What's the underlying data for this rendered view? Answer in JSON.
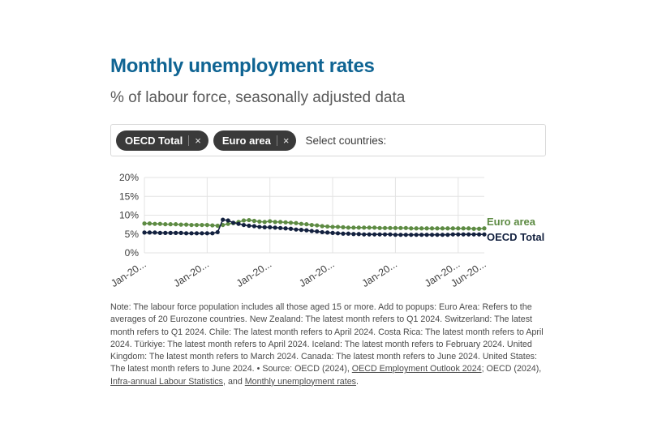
{
  "header": {
    "title": "Monthly unemployment rates",
    "subtitle": "% of labour force, seasonally adjusted data"
  },
  "filters": {
    "prompt": "Select countries:",
    "remove_icon": "×",
    "chips": [
      {
        "label": "OECD Total"
      },
      {
        "label": "Euro area"
      }
    ]
  },
  "chart_data": {
    "type": "line",
    "title": "Monthly unemployment rates",
    "xlabel": "",
    "ylabel": "% of labour force",
    "ylim": [
      0,
      20
    ],
    "ytick_values": [
      0,
      5,
      10,
      15,
      20
    ],
    "ytick_labels": [
      "0%",
      "5%",
      "10%",
      "15%",
      "20%"
    ],
    "x_range": "Jan-2019 to Jun-2024, monthly (66 points)",
    "xtick_labels": [
      "Jan-20...",
      "Jan-20...",
      "Jan-20...",
      "Jan-20...",
      "Jan-20...",
      "Jan-20...",
      "Jun-20..."
    ],
    "xtick_month_indices": [
      0,
      12,
      24,
      36,
      48,
      60,
      65
    ],
    "grid": true,
    "legend_position": "right",
    "series": [
      {
        "name": "Euro area",
        "color": "#5d8b43",
        "values": [
          7.8,
          7.8,
          7.7,
          7.7,
          7.6,
          7.6,
          7.6,
          7.5,
          7.5,
          7.4,
          7.4,
          7.4,
          7.4,
          7.3,
          7.2,
          7.4,
          7.7,
          7.9,
          8.2,
          8.6,
          8.7,
          8.5,
          8.3,
          8.2,
          8.4,
          8.2,
          8.2,
          8.1,
          8.0,
          7.9,
          7.7,
          7.6,
          7.4,
          7.3,
          7.1,
          7.0,
          6.9,
          6.9,
          6.8,
          6.7,
          6.7,
          6.7,
          6.7,
          6.7,
          6.7,
          6.6,
          6.6,
          6.6,
          6.6,
          6.6,
          6.6,
          6.5,
          6.5,
          6.5,
          6.5,
          6.5,
          6.5,
          6.5,
          6.5,
          6.5,
          6.5,
          6.5,
          6.5,
          6.4,
          6.4,
          6.5
        ]
      },
      {
        "name": "OECD Total",
        "color": "#13213f",
        "values": [
          5.4,
          5.4,
          5.4,
          5.3,
          5.3,
          5.3,
          5.3,
          5.3,
          5.2,
          5.2,
          5.2,
          5.2,
          5.2,
          5.2,
          5.5,
          8.8,
          8.6,
          8.0,
          7.7,
          7.4,
          7.2,
          7.1,
          6.9,
          6.8,
          6.8,
          6.7,
          6.6,
          6.5,
          6.4,
          6.2,
          6.1,
          6.0,
          5.8,
          5.7,
          5.5,
          5.4,
          5.3,
          5.2,
          5.1,
          5.1,
          5.0,
          5.0,
          4.9,
          4.9,
          4.9,
          4.9,
          4.9,
          4.9,
          4.8,
          4.8,
          4.8,
          4.8,
          4.8,
          4.8,
          4.8,
          4.8,
          4.8,
          4.8,
          4.8,
          4.9,
          4.9,
          4.9,
          4.9,
          4.9,
          4.9,
          4.9
        ]
      }
    ]
  },
  "note": {
    "segments": [
      {
        "text": "Note: The labour force population includes all those aged 15 or more. Add to popups: Euro Area: Refers to the averages of 20 Eurozone countries. New Zealand: The latest month refers to Q1 2024. Switzerland: The latest month refers to Q1 2024. Chile: The latest month refers to April 2024. Costa Rica: The latest month refers to April 2024. Türkiye: The latest month refers to April 2024. Iceland: The latest month refers to February 2024. United Kingdom: The latest month refers to March 2024. Canada: The latest month refers to June 2024. United States: The latest month refers to June 2024. • Source: OECD (2024), "
      },
      {
        "text": "OECD Employment Outlook 2024",
        "link": true
      },
      {
        "text": "; OECD (2024), "
      },
      {
        "text": "Infra-annual Labour Statistics",
        "link": true
      },
      {
        "text": ", and "
      },
      {
        "text": "Monthly unemployment rates",
        "link": true
      },
      {
        "text": "."
      }
    ]
  },
  "colors": {
    "title_blue": "#0f6493",
    "euro_area_green": "#5d8b43",
    "oecd_total_navy": "#13213f",
    "grid_gray": "#e3e3e3",
    "chip_bg": "#3a3a3a"
  }
}
